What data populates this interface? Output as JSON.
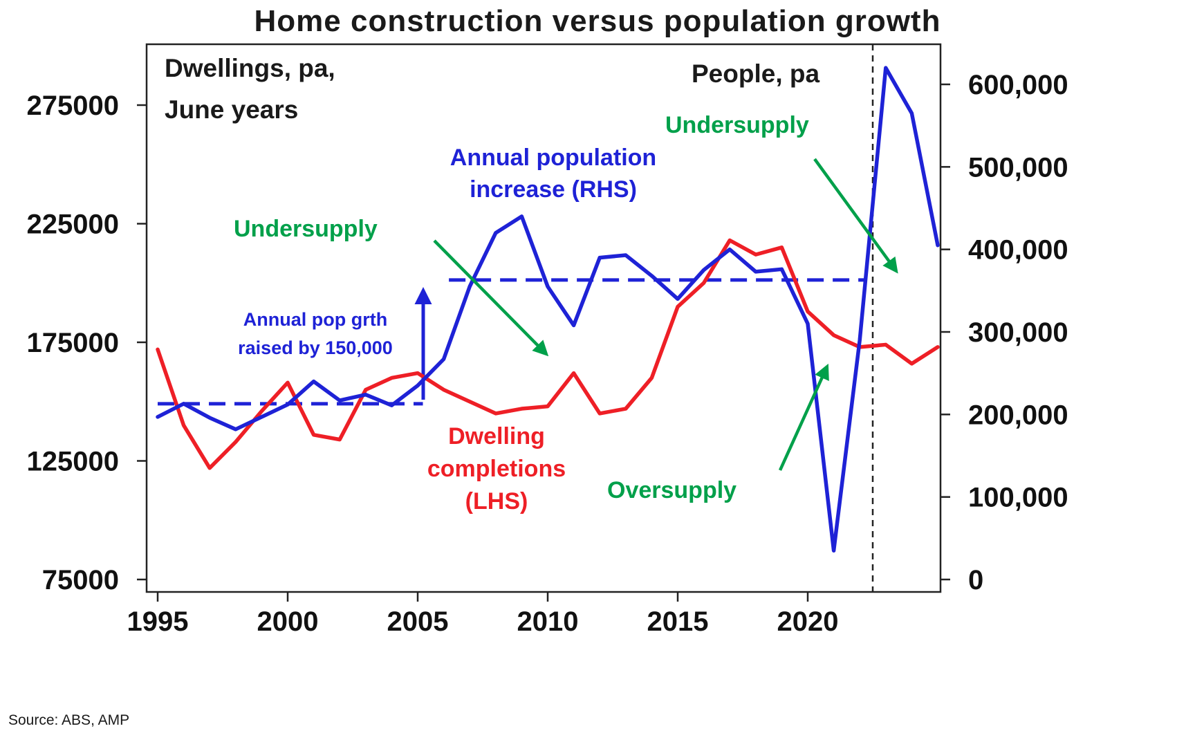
{
  "title": "Home construction versus population growth",
  "source_note": "Source: ABS, AMP",
  "colors": {
    "red": "#ee1f26",
    "blue": "#1e22d6",
    "green": "#00a04a",
    "axis_text": "#111111"
  },
  "annotations": {
    "plot_caption_left_line1": "Dwellings, pa,",
    "plot_caption_left_line2": "June years",
    "plot_caption_right": "People, pa",
    "blue_series_line1": "Annual population",
    "blue_series_line2": "increase (RHS)",
    "red_series_line1": "Dwelling",
    "red_series_line2": "completions",
    "red_series_line3": "(LHS)",
    "undersupply_left": "Undersupply",
    "undersupply_right": "Undersupply",
    "oversupply": "Oversupply",
    "pop_raise_line1": "Annual pop grth",
    "pop_raise_line2": "raised by 150,000"
  },
  "chart_data": {
    "type": "line",
    "title": "Home construction versus population growth",
    "x_label": "June years",
    "grid": false,
    "legend_position": "none",
    "x": [
      1995,
      1996,
      1997,
      1998,
      1999,
      2000,
      2001,
      2002,
      2003,
      2004,
      2005,
      2006,
      2007,
      2008,
      2009,
      2010,
      2011,
      2012,
      2013,
      2014,
      2015,
      2016,
      2017,
      2018,
      2019,
      2020,
      2021,
      2022,
      2023,
      2024,
      2025
    ],
    "series": [
      {
        "name": "Dwelling completions (LHS)",
        "axis": "left",
        "color": "#ee1f26",
        "values": [
          172000,
          140000,
          122000,
          133000,
          146000,
          158000,
          136000,
          134000,
          155000,
          160000,
          162000,
          155000,
          150000,
          145000,
          147000,
          148000,
          162000,
          145000,
          147000,
          160000,
          190000,
          200000,
          218000,
          212000,
          215000,
          188000,
          178000,
          173000,
          174000,
          166000,
          173000
        ]
      },
      {
        "name": "Annual population increase (RHS)",
        "axis": "right",
        "color": "#1e22d6",
        "values": [
          197000,
          213000,
          196000,
          182000,
          197000,
          212000,
          240000,
          217000,
          224000,
          211000,
          235000,
          267000,
          355000,
          420000,
          440000,
          355000,
          308000,
          390000,
          393000,
          368000,
          340000,
          375000,
          400000,
          373000,
          376000,
          310000,
          35000,
          290000,
          620000,
          565000,
          405000
        ]
      }
    ],
    "left_axis": {
      "title": "Dwellings, pa, June years",
      "range": [
        70000,
        290000
      ],
      "ticks": [
        {
          "v": 75000,
          "label": "75000"
        },
        {
          "v": 125000,
          "label": "125000"
        },
        {
          "v": 175000,
          "label": "175000"
        },
        {
          "v": 225000,
          "label": "225000"
        },
        {
          "v": 275000,
          "label": "275000"
        }
      ]
    },
    "right_axis": {
      "title": "People, pa",
      "range": [
        0,
        640000
      ],
      "ticks": [
        {
          "v": 0,
          "label": "0"
        },
        {
          "v": 100000,
          "label": "100,000"
        },
        {
          "v": 200000,
          "label": "200,000"
        },
        {
          "v": 300000,
          "label": "300,000"
        },
        {
          "v": 400000,
          "label": "400,000"
        },
        {
          "v": 500000,
          "label": "500,000"
        },
        {
          "v": 600000,
          "label": "600,000"
        }
      ]
    },
    "x_ticks": [
      {
        "v": 1995,
        "label": "1995"
      },
      {
        "v": 2000,
        "label": "2000"
      },
      {
        "v": 2005,
        "label": "2005"
      },
      {
        "v": 2010,
        "label": "2010"
      },
      {
        "v": 2015,
        "label": "2015"
      },
      {
        "v": 2020,
        "label": "2020"
      }
    ],
    "dashed_trend_levels_rhs": [
      {
        "value": 213000,
        "from_year": 1995,
        "to_year": 2005.2
      },
      {
        "value": 363000,
        "from_year": 2006.2,
        "to_year": 2022.2
      }
    ],
    "vertical_dashed_year": 2022.5
  }
}
